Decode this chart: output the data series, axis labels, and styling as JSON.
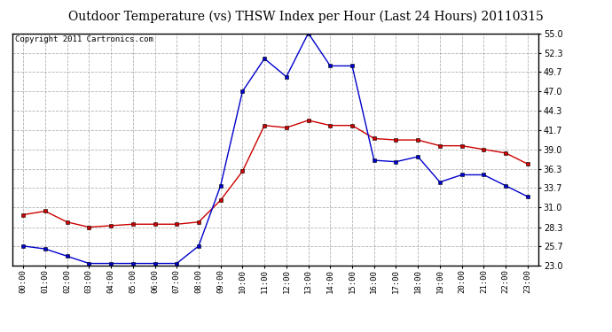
{
  "title": "Outdoor Temperature (vs) THSW Index per Hour (Last 24 Hours) 20110315",
  "copyright": "Copyright 2011 Cartronics.com",
  "hours": [
    "00:00",
    "01:00",
    "02:00",
    "03:00",
    "04:00",
    "05:00",
    "06:00",
    "07:00",
    "08:00",
    "09:00",
    "10:00",
    "11:00",
    "12:00",
    "13:00",
    "14:00",
    "15:00",
    "16:00",
    "17:00",
    "18:00",
    "19:00",
    "20:00",
    "21:00",
    "22:00",
    "23:00"
  ],
  "outdoor_temp": [
    30.0,
    30.5,
    29.0,
    28.3,
    28.5,
    28.7,
    28.7,
    28.7,
    29.0,
    32.0,
    36.0,
    42.3,
    42.0,
    43.0,
    42.3,
    42.3,
    40.5,
    40.3,
    40.3,
    39.5,
    39.5,
    39.0,
    38.5,
    37.0
  ],
  "thsw_index": [
    25.7,
    25.3,
    24.3,
    23.3,
    23.3,
    23.3,
    23.3,
    23.3,
    25.7,
    34.0,
    47.0,
    51.5,
    49.0,
    55.0,
    50.5,
    50.5,
    37.5,
    37.3,
    38.0,
    34.5,
    35.5,
    35.5,
    34.0,
    32.5
  ],
  "ylim": [
    23.0,
    55.0
  ],
  "yticks": [
    23.0,
    25.7,
    28.3,
    31.0,
    33.7,
    36.3,
    39.0,
    41.7,
    44.3,
    47.0,
    49.7,
    52.3,
    55.0
  ],
  "temp_color": "#cc0000",
  "thsw_color": "#0000cc",
  "marker": "s",
  "marker_size": 3,
  "grid_color": "#aaaaaa",
  "bg_color": "#ffffff",
  "plot_bg_color": "#ffffff",
  "title_fontsize": 10,
  "copyright_fontsize": 6.5
}
